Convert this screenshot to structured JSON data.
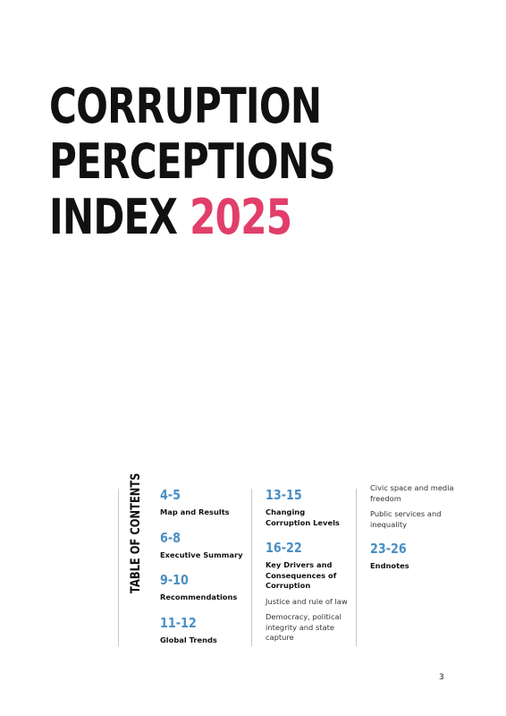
{
  "title": {
    "line1": "CORRUPTION",
    "line2": "PERCEPTIONS",
    "line3": "INDEX",
    "year": "2025"
  },
  "toc": {
    "label": "TABLE OF CONTENTS",
    "col1": [
      {
        "pages": "4-5",
        "heading": "Map and Results"
      },
      {
        "pages": "6-8",
        "heading": "Executive Summary"
      },
      {
        "pages": "9-10",
        "heading": "Recommendations"
      },
      {
        "pages": "11-12",
        "heading": "Global Trends"
      }
    ],
    "col2": {
      "e1": {
        "pages": "13-15",
        "heading": "Changing Corruption Levels"
      },
      "e2": {
        "pages": "16-22",
        "heading": "Key Drivers and Consequences of Corruption",
        "subs": [
          "Justice and rule of law",
          "Democracy, political integrity and state capture"
        ]
      }
    },
    "col3": {
      "subs": [
        "Civic space and media freedom",
        "Public services and inequality"
      ],
      "e1": {
        "pages": "23-26",
        "heading": "Endnotes"
      }
    }
  },
  "page_number": "3",
  "colors": {
    "accent_pink": "#e23e6a",
    "toc_blue": "#4a8fc4"
  }
}
